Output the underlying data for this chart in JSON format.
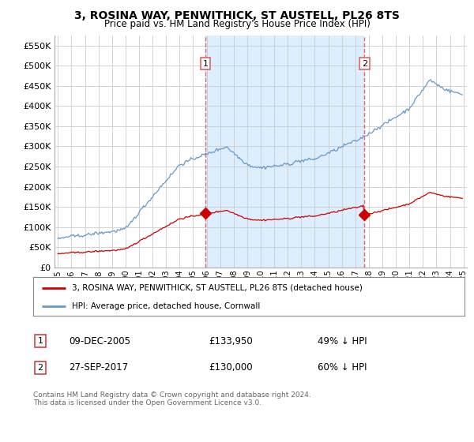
{
  "title": "3, ROSINA WAY, PENWITHICK, ST AUSTELL, PL26 8TS",
  "subtitle": "Price paid vs. HM Land Registry's House Price Index (HPI)",
  "ylim": [
    0,
    575000
  ],
  "yticks": [
    0,
    50000,
    100000,
    150000,
    200000,
    250000,
    300000,
    350000,
    400000,
    450000,
    500000,
    550000
  ],
  "legend_line1": "3, ROSINA WAY, PENWITHICK, ST AUSTELL, PL26 8TS (detached house)",
  "legend_line2": "HPI: Average price, detached house, Cornwall",
  "transaction1_date": "09-DEC-2005",
  "transaction1_price": 133950,
  "transaction1_label": "49% ↓ HPI",
  "transaction2_date": "27-SEP-2017",
  "transaction2_price": 130000,
  "transaction2_label": "60% ↓ HPI",
  "footnote": "Contains HM Land Registry data © Crown copyright and database right 2024.\nThis data is licensed under the Open Government Licence v3.0.",
  "red_color": "#cc0000",
  "blue_color": "#6699cc",
  "shade_color": "#ddeeff",
  "vline_color": "#dd6666",
  "background_color": "#ffffff",
  "grid_color": "#cccccc"
}
